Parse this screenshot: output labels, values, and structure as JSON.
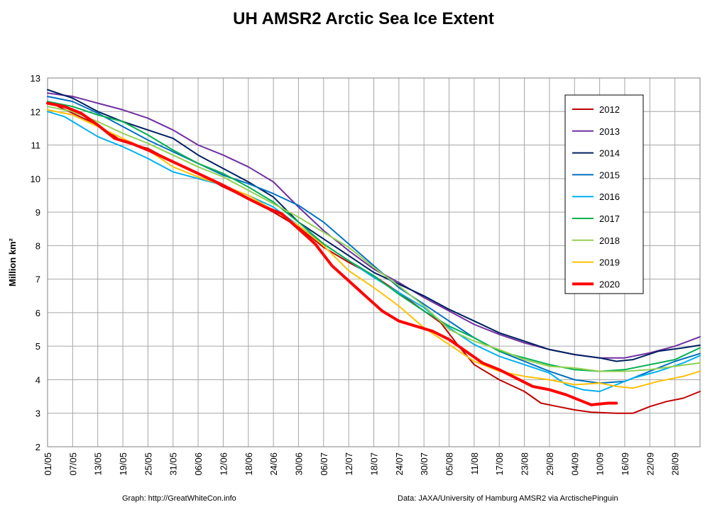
{
  "chart_data": {
    "type": "line",
    "title": "UH AMSR2 Arctic Sea Ice Extent",
    "ylabel": "Million km²",
    "ylim": [
      2,
      13
    ],
    "yticks": [
      2,
      3,
      4,
      5,
      6,
      7,
      8,
      9,
      10,
      11,
      12,
      13
    ],
    "xlim": [
      0,
      156
    ],
    "xtick_labels": [
      "01/05",
      "07/05",
      "13/05",
      "19/05",
      "25/05",
      "31/05",
      "06/06",
      "12/06",
      "18/06",
      "24/06",
      "30/06",
      "06/07",
      "12/07",
      "18/07",
      "24/07",
      "30/07",
      "05/08",
      "11/08",
      "17/08",
      "23/08",
      "29/08",
      "04/09",
      "10/09",
      "16/09",
      "22/09",
      "28/09"
    ],
    "xtick_positions": [
      0,
      6,
      12,
      18,
      24,
      30,
      36,
      42,
      48,
      54,
      60,
      66,
      72,
      78,
      84,
      90,
      96,
      102,
      108,
      114,
      120,
      126,
      132,
      138,
      144,
      150
    ],
    "grid": true,
    "legend_position": "top-right",
    "series": [
      {
        "name": "2012",
        "color": "#c00000",
        "width": 2,
        "points": [
          [
            0,
            12.3
          ],
          [
            6,
            11.95
          ],
          [
            12,
            11.6
          ],
          [
            18,
            11.1
          ],
          [
            24,
            10.9
          ],
          [
            30,
            10.5
          ],
          [
            36,
            10.15
          ],
          [
            42,
            9.75
          ],
          [
            48,
            9.4
          ],
          [
            54,
            9.0
          ],
          [
            60,
            8.55
          ],
          [
            66,
            7.95
          ],
          [
            72,
            7.5
          ],
          [
            78,
            7.1
          ],
          [
            84,
            6.6
          ],
          [
            90,
            6.05
          ],
          [
            94,
            5.7
          ],
          [
            98,
            5.05
          ],
          [
            102,
            4.45
          ],
          [
            108,
            4.0
          ],
          [
            114,
            3.65
          ],
          [
            118,
            3.3
          ],
          [
            122,
            3.2
          ],
          [
            126,
            3.1
          ],
          [
            130,
            3.03
          ],
          [
            136,
            3.0
          ],
          [
            140,
            3.0
          ],
          [
            144,
            3.2
          ],
          [
            148,
            3.35
          ],
          [
            152,
            3.45
          ],
          [
            156,
            3.65
          ]
        ]
      },
      {
        "name": "2013",
        "color": "#7030a0",
        "width": 2,
        "points": [
          [
            0,
            12.55
          ],
          [
            6,
            12.45
          ],
          [
            12,
            12.25
          ],
          [
            18,
            12.05
          ],
          [
            24,
            11.8
          ],
          [
            30,
            11.45
          ],
          [
            36,
            11.0
          ],
          [
            42,
            10.7
          ],
          [
            48,
            10.35
          ],
          [
            54,
            9.9
          ],
          [
            60,
            9.15
          ],
          [
            66,
            8.45
          ],
          [
            72,
            7.85
          ],
          [
            78,
            7.3
          ],
          [
            84,
            6.9
          ],
          [
            90,
            6.45
          ],
          [
            96,
            6.05
          ],
          [
            102,
            5.65
          ],
          [
            108,
            5.35
          ],
          [
            114,
            5.1
          ],
          [
            120,
            4.9
          ],
          [
            126,
            4.75
          ],
          [
            132,
            4.65
          ],
          [
            138,
            4.65
          ],
          [
            144,
            4.8
          ],
          [
            150,
            5.0
          ],
          [
            156,
            5.28
          ]
        ]
      },
      {
        "name": "2014",
        "color": "#002060",
        "width": 2,
        "points": [
          [
            0,
            12.65
          ],
          [
            6,
            12.4
          ],
          [
            12,
            12.0
          ],
          [
            18,
            11.7
          ],
          [
            24,
            11.45
          ],
          [
            30,
            11.2
          ],
          [
            36,
            10.7
          ],
          [
            42,
            10.3
          ],
          [
            48,
            9.9
          ],
          [
            54,
            9.45
          ],
          [
            60,
            8.7
          ],
          [
            66,
            8.2
          ],
          [
            72,
            7.7
          ],
          [
            78,
            7.2
          ],
          [
            84,
            6.85
          ],
          [
            90,
            6.5
          ],
          [
            96,
            6.1
          ],
          [
            102,
            5.75
          ],
          [
            108,
            5.4
          ],
          [
            114,
            5.15
          ],
          [
            120,
            4.9
          ],
          [
            126,
            4.75
          ],
          [
            132,
            4.65
          ],
          [
            136,
            4.55
          ],
          [
            140,
            4.6
          ],
          [
            146,
            4.85
          ],
          [
            152,
            4.95
          ],
          [
            156,
            5.03
          ]
        ]
      },
      {
        "name": "2015",
        "color": "#0070c0",
        "width": 2,
        "points": [
          [
            0,
            12.45
          ],
          [
            6,
            12.3
          ],
          [
            12,
            11.95
          ],
          [
            18,
            11.55
          ],
          [
            24,
            11.15
          ],
          [
            30,
            10.8
          ],
          [
            36,
            10.45
          ],
          [
            42,
            10.1
          ],
          [
            48,
            9.85
          ],
          [
            54,
            9.55
          ],
          [
            60,
            9.2
          ],
          [
            66,
            8.7
          ],
          [
            72,
            8.05
          ],
          [
            78,
            7.4
          ],
          [
            84,
            6.75
          ],
          [
            90,
            6.25
          ],
          [
            96,
            5.75
          ],
          [
            102,
            5.25
          ],
          [
            108,
            4.85
          ],
          [
            114,
            4.55
          ],
          [
            120,
            4.25
          ],
          [
            126,
            4.0
          ],
          [
            132,
            3.9
          ],
          [
            138,
            3.95
          ],
          [
            144,
            4.25
          ],
          [
            150,
            4.55
          ],
          [
            156,
            4.78
          ]
        ]
      },
      {
        "name": "2016",
        "color": "#00b0f0",
        "width": 2,
        "points": [
          [
            0,
            12.0
          ],
          [
            4,
            11.85
          ],
          [
            8,
            11.55
          ],
          [
            12,
            11.25
          ],
          [
            18,
            10.95
          ],
          [
            24,
            10.6
          ],
          [
            30,
            10.2
          ],
          [
            36,
            10.0
          ],
          [
            42,
            9.8
          ],
          [
            48,
            9.5
          ],
          [
            54,
            9.15
          ],
          [
            60,
            8.6
          ],
          [
            66,
            8.05
          ],
          [
            72,
            7.55
          ],
          [
            78,
            7.05
          ],
          [
            84,
            6.6
          ],
          [
            90,
            6.15
          ],
          [
            96,
            5.55
          ],
          [
            102,
            5.05
          ],
          [
            108,
            4.7
          ],
          [
            114,
            4.45
          ],
          [
            120,
            4.2
          ],
          [
            124,
            3.85
          ],
          [
            128,
            3.7
          ],
          [
            132,
            3.65
          ],
          [
            136,
            3.85
          ],
          [
            140,
            4.05
          ],
          [
            146,
            4.25
          ],
          [
            152,
            4.5
          ],
          [
            156,
            4.72
          ]
        ]
      },
      {
        "name": "2017",
        "color": "#00b050",
        "width": 2,
        "points": [
          [
            0,
            12.3
          ],
          [
            6,
            12.15
          ],
          [
            12,
            11.9
          ],
          [
            18,
            11.7
          ],
          [
            24,
            11.3
          ],
          [
            30,
            10.85
          ],
          [
            36,
            10.45
          ],
          [
            42,
            10.15
          ],
          [
            48,
            9.75
          ],
          [
            54,
            9.3
          ],
          [
            60,
            8.7
          ],
          [
            66,
            8.05
          ],
          [
            72,
            7.55
          ],
          [
            78,
            7.1
          ],
          [
            84,
            6.55
          ],
          [
            90,
            6.05
          ],
          [
            96,
            5.6
          ],
          [
            102,
            5.25
          ],
          [
            108,
            4.85
          ],
          [
            114,
            4.65
          ],
          [
            120,
            4.45
          ],
          [
            126,
            4.3
          ],
          [
            132,
            4.25
          ],
          [
            138,
            4.3
          ],
          [
            144,
            4.45
          ],
          [
            150,
            4.6
          ],
          [
            156,
            4.95
          ]
        ]
      },
      {
        "name": "2018",
        "color": "#92d050",
        "width": 2,
        "points": [
          [
            0,
            12.15
          ],
          [
            6,
            12.0
          ],
          [
            12,
            11.7
          ],
          [
            18,
            11.35
          ],
          [
            24,
            11.05
          ],
          [
            30,
            10.7
          ],
          [
            36,
            10.35
          ],
          [
            42,
            10.05
          ],
          [
            48,
            9.65
          ],
          [
            54,
            9.25
          ],
          [
            60,
            8.85
          ],
          [
            66,
            8.4
          ],
          [
            72,
            7.95
          ],
          [
            78,
            7.35
          ],
          [
            84,
            6.8
          ],
          [
            90,
            6.2
          ],
          [
            96,
            5.5
          ],
          [
            102,
            5.15
          ],
          [
            108,
            4.9
          ],
          [
            114,
            4.6
          ],
          [
            120,
            4.4
          ],
          [
            126,
            4.35
          ],
          [
            132,
            4.25
          ],
          [
            138,
            4.25
          ],
          [
            144,
            4.3
          ],
          [
            150,
            4.4
          ],
          [
            156,
            4.5
          ]
        ]
      },
      {
        "name": "2019",
        "color": "#ffc000",
        "width": 2,
        "points": [
          [
            0,
            12.05
          ],
          [
            6,
            11.9
          ],
          [
            12,
            11.55
          ],
          [
            18,
            11.2
          ],
          [
            24,
            10.85
          ],
          [
            30,
            10.35
          ],
          [
            36,
            10.05
          ],
          [
            42,
            9.8
          ],
          [
            48,
            9.5
          ],
          [
            54,
            9.05
          ],
          [
            60,
            8.6
          ],
          [
            66,
            8.0
          ],
          [
            72,
            7.25
          ],
          [
            78,
            6.75
          ],
          [
            84,
            6.2
          ],
          [
            90,
            5.55
          ],
          [
            96,
            5.05
          ],
          [
            102,
            4.55
          ],
          [
            108,
            4.25
          ],
          [
            114,
            4.1
          ],
          [
            120,
            4.0
          ],
          [
            126,
            3.85
          ],
          [
            132,
            3.9
          ],
          [
            136,
            3.8
          ],
          [
            140,
            3.75
          ],
          [
            146,
            3.95
          ],
          [
            152,
            4.1
          ],
          [
            156,
            4.25
          ]
        ]
      },
      {
        "name": "2020",
        "color": "#ff0000",
        "width": 4,
        "points": [
          [
            0,
            12.25
          ],
          [
            4,
            12.15
          ],
          [
            8,
            11.95
          ],
          [
            12,
            11.6
          ],
          [
            16,
            11.2
          ],
          [
            20,
            11.05
          ],
          [
            24,
            10.85
          ],
          [
            30,
            10.5
          ],
          [
            36,
            10.15
          ],
          [
            42,
            9.8
          ],
          [
            48,
            9.4
          ],
          [
            52,
            9.15
          ],
          [
            56,
            8.95
          ],
          [
            60,
            8.5
          ],
          [
            64,
            8.05
          ],
          [
            68,
            7.4
          ],
          [
            72,
            6.95
          ],
          [
            76,
            6.5
          ],
          [
            80,
            6.05
          ],
          [
            84,
            5.75
          ],
          [
            88,
            5.6
          ],
          [
            92,
            5.45
          ],
          [
            96,
            5.2
          ],
          [
            100,
            4.85
          ],
          [
            104,
            4.5
          ],
          [
            108,
            4.3
          ],
          [
            112,
            4.05
          ],
          [
            116,
            3.8
          ],
          [
            120,
            3.7
          ],
          [
            124,
            3.55
          ],
          [
            128,
            3.35
          ],
          [
            130,
            3.25
          ],
          [
            134,
            3.3
          ],
          [
            136,
            3.3
          ]
        ]
      }
    ]
  },
  "footer": {
    "left": "Graph: http://GreatWhiteCon.info",
    "right": "Data: JAXA/University of Hamburg AMSR2 via ArctischePinguin"
  }
}
